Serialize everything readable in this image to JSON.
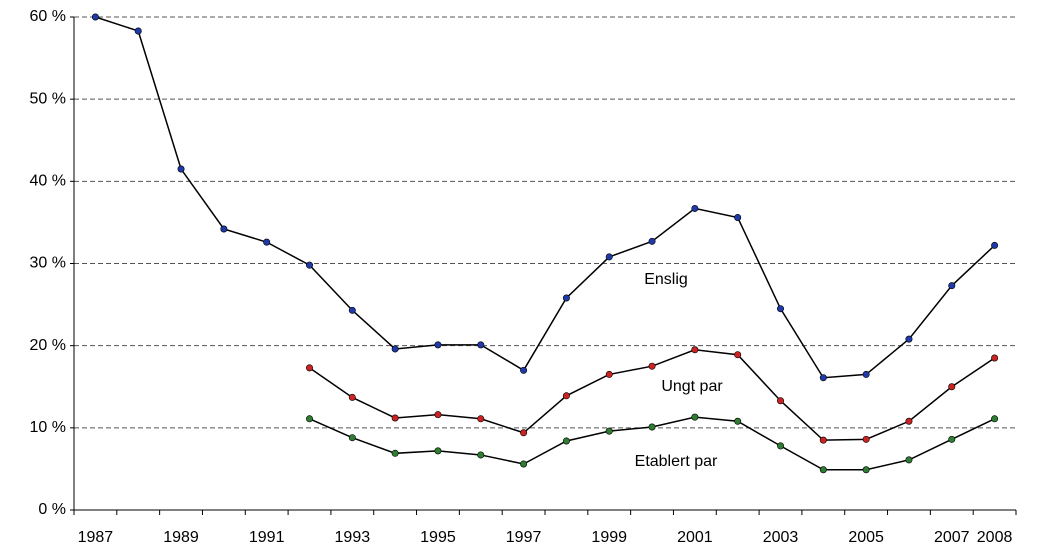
{
  "chart_data": {
    "type": "line",
    "categories": [
      "1987",
      null,
      "1989",
      null,
      "1991",
      null,
      "1993",
      null,
      "1995",
      null,
      "1997",
      null,
      "1999",
      null,
      "2001",
      null,
      "2003",
      null,
      "2005",
      null,
      "2007",
      "2008"
    ],
    "series": [
      {
        "name": "Enslig",
        "color": "#1f3aa8",
        "values": [
          60,
          58.3,
          41.5,
          34.2,
          32.6,
          29.8,
          24.3,
          19.6,
          20.1,
          20.1,
          17.0,
          25.8,
          30.8,
          32.7,
          36.7,
          35.6,
          24.5,
          16.1,
          16.5,
          20.8,
          27.3,
          32.2
        ]
      },
      {
        "name": "Ungt par",
        "color": "#cc2222",
        "values": [
          null,
          null,
          null,
          null,
          null,
          17.3,
          13.7,
          11.2,
          11.6,
          11.1,
          9.4,
          13.9,
          16.5,
          17.5,
          19.5,
          18.9,
          13.3,
          8.5,
          8.6,
          10.8,
          15.0,
          18.5
        ]
      },
      {
        "name": "Etablert par",
        "color": "#2e7d32",
        "values": [
          null,
          null,
          null,
          null,
          null,
          11.1,
          8.8,
          6.9,
          7.2,
          6.7,
          5.6,
          8.4,
          9.6,
          10.1,
          11.3,
          10.8,
          7.8,
          4.9,
          4.9,
          6.1,
          8.6,
          11.1
        ]
      }
    ],
    "line_color": "#000000",
    "ylim": [
      0,
      60
    ],
    "yticks": [
      {
        "value": 0,
        "label": "0 %"
      },
      {
        "value": 10,
        "label": "10 %"
      },
      {
        "value": 20,
        "label": "20 %"
      },
      {
        "value": 30,
        "label": "30 %"
      },
      {
        "value": 40,
        "label": "40 %"
      },
      {
        "value": 50,
        "label": "50 %"
      },
      {
        "value": 60,
        "label": "60 %"
      }
    ],
    "grid": true
  }
}
